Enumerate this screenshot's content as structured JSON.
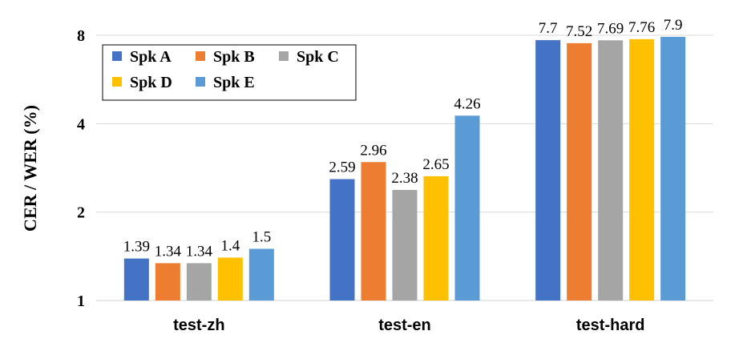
{
  "chart_data": {
    "type": "bar",
    "yscale": "log2",
    "categories": [
      "test-zh",
      "test-en",
      "test-hard"
    ],
    "series": [
      {
        "name": "Spk A",
        "color": "#4472C4",
        "values": [
          1.39,
          2.59,
          7.7
        ]
      },
      {
        "name": "Spk B",
        "color": "#ED7D31",
        "values": [
          1.34,
          2.96,
          7.52
        ]
      },
      {
        "name": "Spk C",
        "color": "#A5A5A5",
        "values": [
          1.34,
          2.38,
          7.69
        ]
      },
      {
        "name": "Spk D",
        "color": "#FFC000",
        "values": [
          1.4,
          2.65,
          7.76
        ]
      },
      {
        "name": "Spk E",
        "color": "#5B9BD5",
        "values": [
          1.5,
          4.26,
          7.9
        ]
      }
    ],
    "data_labels": [
      [
        "1.39",
        "2.59",
        "7.7"
      ],
      [
        "1.34",
        "2.96",
        "7.52"
      ],
      [
        "1.34",
        "2.38",
        "7.69"
      ],
      [
        "1.4",
        "2.65",
        "7.76"
      ],
      [
        "1.5",
        "4.26",
        "7.9"
      ]
    ],
    "ylabel": "CER / WER (%)",
    "xlabel": "",
    "yticks": [
      1,
      2,
      4,
      8
    ],
    "ytick_labels": [
      "1",
      "2",
      "4",
      "8"
    ],
    "ylim": [
      1,
      8
    ],
    "grid": true,
    "legend_position": "top-left"
  }
}
